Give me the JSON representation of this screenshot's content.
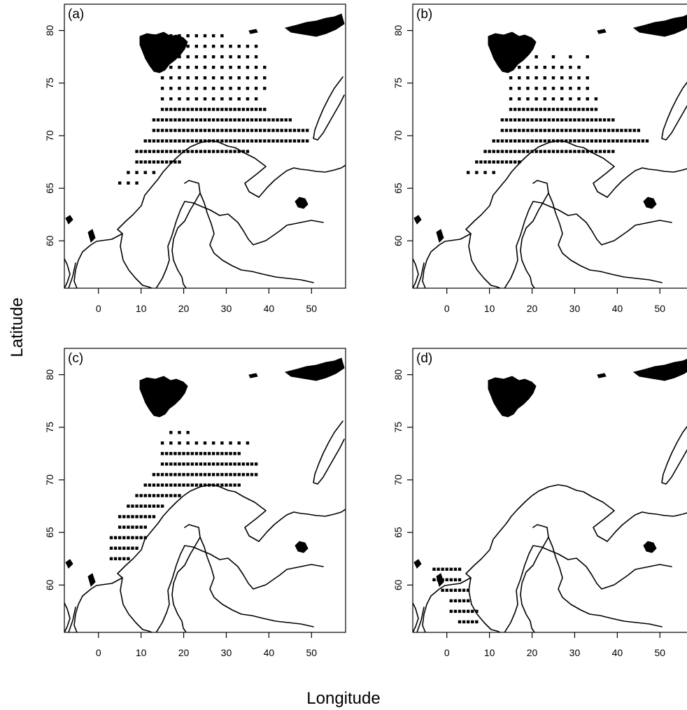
{
  "figure": {
    "xlabel": "Longitude",
    "ylabel": "Latitude",
    "x_ticks": [
      0,
      10,
      20,
      30,
      40,
      50
    ],
    "y_ticks": [
      60,
      65,
      70,
      75,
      80
    ],
    "x_range": [
      -8,
      58
    ],
    "y_range": [
      55.5,
      82.5
    ],
    "cell_color": "#000000",
    "coast_color": "#000000"
  },
  "panels": [
    {
      "label": "(a)",
      "cells": [
        {
          "lon": [
            13,
            29
          ],
          "lat": [
            79.5,
            79.5
          ],
          "step": 2
        },
        {
          "lon": [
            13,
            37
          ],
          "lat": [
            78.5,
            78.5
          ],
          "step": 2
        },
        {
          "lon": [
            13,
            37
          ],
          "lat": [
            77.5,
            77.5
          ],
          "step": 2
        },
        {
          "lon": [
            13,
            39
          ],
          "lat": [
            76.5,
            76.5
          ],
          "step": 2
        },
        {
          "lon": [
            15,
            39
          ],
          "lat": [
            74.5,
            75.5
          ],
          "step": 2
        },
        {
          "lon": [
            15,
            37
          ],
          "lat": [
            73.5,
            73.5
          ],
          "step": 2
        },
        {
          "lon": [
            15,
            39
          ],
          "lat": [
            72.5,
            72.5
          ],
          "step": 1
        },
        {
          "lon": [
            13,
            45
          ],
          "lat": [
            71.5,
            71.5
          ],
          "step": 1
        },
        {
          "lon": [
            13,
            49
          ],
          "lat": [
            70.5,
            70.5
          ],
          "step": 1
        },
        {
          "lon": [
            11,
            49
          ],
          "lat": [
            69.5,
            69.5
          ],
          "step": 1
        },
        {
          "lon": [
            9,
            35
          ],
          "lat": [
            68.5,
            68.5
          ],
          "step": 1
        },
        {
          "lon": [
            9,
            19
          ],
          "lat": [
            67.5,
            67.5
          ],
          "step": 1
        },
        {
          "lon": [
            7,
            13
          ],
          "lat": [
            66.5,
            66.5
          ],
          "step": 2
        },
        {
          "lon": [
            5,
            9
          ],
          "lat": [
            65.5,
            65.5
          ],
          "step": 2
        }
      ]
    },
    {
      "label": "(b)",
      "cells": [
        {
          "lon": [
            17,
            33
          ],
          "lat": [
            77.5,
            77.5
          ],
          "step": 4
        },
        {
          "lon": [
            15,
            31
          ],
          "lat": [
            76.5,
            76.5
          ],
          "step": 2
        },
        {
          "lon": [
            15,
            33
          ],
          "lat": [
            74.5,
            75.5
          ],
          "step": 2
        },
        {
          "lon": [
            15,
            35
          ],
          "lat": [
            73.5,
            73.5
          ],
          "step": 2
        },
        {
          "lon": [
            15,
            35
          ],
          "lat": [
            72.5,
            72.5
          ],
          "step": 1
        },
        {
          "lon": [
            13,
            39
          ],
          "lat": [
            71.5,
            71.5
          ],
          "step": 1
        },
        {
          "lon": [
            13,
            45
          ],
          "lat": [
            70.5,
            70.5
          ],
          "step": 1
        },
        {
          "lon": [
            11,
            47
          ],
          "lat": [
            69.5,
            69.5
          ],
          "step": 1
        },
        {
          "lon": [
            9,
            39
          ],
          "lat": [
            68.5,
            68.5
          ],
          "step": 1
        },
        {
          "lon": [
            7,
            17
          ],
          "lat": [
            67.5,
            67.5
          ],
          "step": 1
        },
        {
          "lon": [
            5,
            11
          ],
          "lat": [
            66.5,
            66.5
          ],
          "step": 2
        }
      ]
    },
    {
      "label": "(c)",
      "cells": [
        {
          "lon": [
            17,
            21
          ],
          "lat": [
            74.5,
            74.5
          ],
          "step": 2
        },
        {
          "lon": [
            15,
            35
          ],
          "lat": [
            73.5,
            73.5
          ],
          "step": 2
        },
        {
          "lon": [
            15,
            33
          ],
          "lat": [
            72.5,
            72.5
          ],
          "step": 1
        },
        {
          "lon": [
            15,
            37
          ],
          "lat": [
            71.5,
            71.5
          ],
          "step": 1
        },
        {
          "lon": [
            13,
            37
          ],
          "lat": [
            70.5,
            70.5
          ],
          "step": 1
        },
        {
          "lon": [
            11,
            33
          ],
          "lat": [
            69.5,
            69.5
          ],
          "step": 1
        },
        {
          "lon": [
            9,
            19
          ],
          "lat": [
            68.5,
            68.5
          ],
          "step": 1
        },
        {
          "lon": [
            7,
            15
          ],
          "lat": [
            67.5,
            67.5
          ],
          "step": 1
        },
        {
          "lon": [
            5,
            13
          ],
          "lat": [
            66.5,
            66.5
          ],
          "step": 1
        },
        {
          "lon": [
            5,
            11
          ],
          "lat": [
            65.5,
            65.5
          ],
          "step": 1
        },
        {
          "lon": [
            3,
            11
          ],
          "lat": [
            64.5,
            64.5
          ],
          "step": 1
        },
        {
          "lon": [
            3,
            9
          ],
          "lat": [
            63.5,
            63.5
          ],
          "step": 1
        },
        {
          "lon": [
            3,
            7
          ],
          "lat": [
            62.5,
            62.5
          ],
          "step": 1
        }
      ]
    },
    {
      "label": "(d)",
      "cells": [
        {
          "lon": [
            -3,
            3
          ],
          "lat": [
            61.5,
            61.5
          ],
          "step": 1
        },
        {
          "lon": [
            -3,
            3
          ],
          "lat": [
            60.5,
            60.5
          ],
          "step": 1
        },
        {
          "lon": [
            -1,
            5
          ],
          "lat": [
            59.5,
            59.5
          ],
          "step": 1
        },
        {
          "lon": [
            1,
            5
          ],
          "lat": [
            58.5,
            58.5
          ],
          "step": 1
        },
        {
          "lon": [
            1,
            7
          ],
          "lat": [
            57.5,
            57.5
          ],
          "step": 1
        },
        {
          "lon": [
            3,
            7
          ],
          "lat": [
            56.5,
            56.5
          ],
          "step": 1
        }
      ]
    }
  ]
}
